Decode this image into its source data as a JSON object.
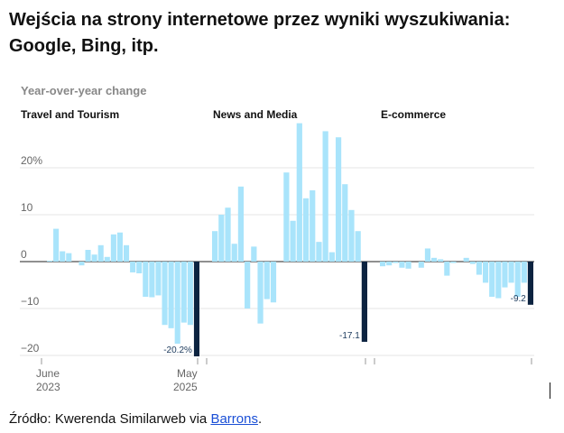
{
  "header": {
    "title": "Wejścia na strony internetowe przez wyniki wyszukiwania: Google, Bing, itp."
  },
  "footer": {
    "source_prefix": "Źródło: Kwerenda Similarweb via ",
    "source_link": "Barrons",
    "source_suffix": "."
  },
  "colors": {
    "bar": "#a9e4fb",
    "last_bar": "#0c2340",
    "grid": "#e4e4e4",
    "zero": "#222222",
    "axis_text": "#666666",
    "label_text": "#1c3a5c"
  },
  "chart_data": {
    "type": "bar",
    "subtitle": "Year-over-year change",
    "ylim": [
      -21,
      30
    ],
    "yticks": [
      20,
      10,
      0,
      -10,
      -20
    ],
    "ytick_labels": [
      "20%",
      "10",
      "0",
      "−10",
      "−20"
    ],
    "xtick_labels": [
      {
        "line1": "June",
        "line2": "2023"
      },
      {
        "line1": "May",
        "line2": "2025"
      }
    ],
    "panels": [
      {
        "name": "Travel and Tourism",
        "last_label": "-20.2%",
        "values": [
          0.2,
          7,
          2.2,
          1.8,
          0,
          -0.8,
          2.5,
          1.5,
          3.5,
          1,
          5.8,
          6.2,
          3.5,
          -2.3,
          -2.5,
          -7.5,
          -7.6,
          -7.2,
          -13.5,
          -14.2,
          -17.5,
          -13,
          -13.5,
          -20.2
        ]
      },
      {
        "name": "News and Media",
        "last_label": "-17.1",
        "values": [
          6.5,
          10,
          11.5,
          3.8,
          16,
          -10,
          3.2,
          -13.2,
          -8,
          -8.7,
          0,
          19,
          8.7,
          29.5,
          13.5,
          15.2,
          4.2,
          27.8,
          2,
          26.5,
          16.5,
          11,
          6.5,
          -17.1
        ]
      },
      {
        "name": "E-commerce",
        "last_label": "-9.2",
        "values": [
          -1,
          -0.8,
          -0.3,
          -1.3,
          -1.5,
          0,
          -1.3,
          2.8,
          0.8,
          0.5,
          -3,
          -0.3,
          0,
          0.8,
          -0.5,
          -2.8,
          -4.5,
          -7.5,
          -7.8,
          -5.5,
          -4.5,
          -7.5,
          -4.5,
          -9.2
        ]
      }
    ]
  }
}
